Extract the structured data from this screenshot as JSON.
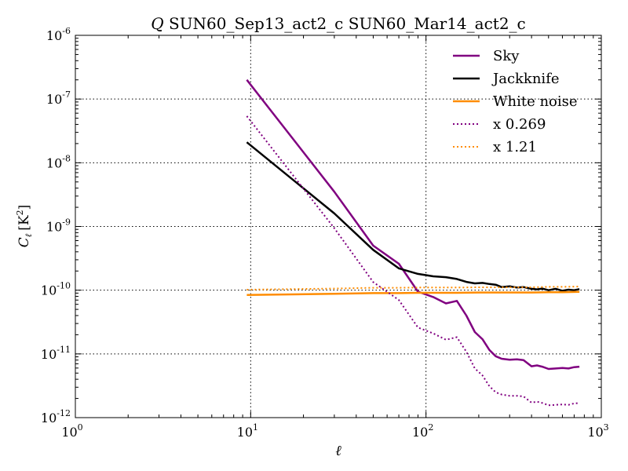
{
  "chart_data": {
    "type": "line",
    "title": "SUN60_Sep13_act2_c SUN60_Mar14_act2_c",
    "title_prefix": "Q",
    "xlabel": "ℓ",
    "ylabel": "C",
    "ylabel_sub": "ℓ",
    "ylabel_unit": "[K",
    "ylabel_unit_sup": "2",
    "ylabel_unit_end": "]",
    "xscale": "log",
    "yscale": "log",
    "xlim": [
      1,
      1000
    ],
    "ylim": [
      1e-12,
      1e-06
    ],
    "grid": true,
    "legend_position": "top-right",
    "x_ticks": [
      {
        "value": 1,
        "base": "10",
        "exp": "0"
      },
      {
        "value": 10,
        "base": "10",
        "exp": "1"
      },
      {
        "value": 100,
        "base": "10",
        "exp": "2"
      },
      {
        "value": 1000,
        "base": "10",
        "exp": "3"
      }
    ],
    "y_ticks": [
      {
        "value": 1e-12,
        "base": "10",
        "exp": "-12"
      },
      {
        "value": 1e-11,
        "base": "10",
        "exp": "-11"
      },
      {
        "value": 1e-10,
        "base": "10",
        "exp": "-10"
      },
      {
        "value": 1e-09,
        "base": "10",
        "exp": "-9"
      },
      {
        "value": 1e-08,
        "base": "10",
        "exp": "-8"
      },
      {
        "value": 1e-07,
        "base": "10",
        "exp": "-7"
      },
      {
        "value": 1e-06,
        "base": "10",
        "exp": "-6"
      }
    ],
    "series": [
      {
        "name": "Sky",
        "color": "#800080",
        "style": "solid",
        "x": [
          9.5,
          30,
          50,
          70,
          90,
          110,
          130,
          150,
          170,
          190,
          210,
          230,
          250,
          270,
          300,
          330,
          360,
          400,
          430,
          460,
          500,
          550,
          600,
          650,
          700,
          750
        ],
        "y": [
          2e-07,
          3.5e-09,
          5e-10,
          2.6e-10,
          9.5e-11,
          7.8e-11,
          6.2e-11,
          6.8e-11,
          4e-11,
          2.2e-11,
          1.7e-11,
          1.15e-11,
          9.2e-12,
          8.4e-12,
          8.1e-12,
          8.2e-12,
          8e-12,
          6.4e-12,
          6.6e-12,
          6.3e-12,
          5.8e-12,
          5.9e-12,
          6e-12,
          5.9e-12,
          6.2e-12,
          6.3e-12
        ]
      },
      {
        "name": "Jackknife",
        "color": "#000000",
        "style": "solid",
        "x": [
          9.5,
          30,
          50,
          70,
          90,
          110,
          130,
          150,
          170,
          190,
          210,
          230,
          250,
          270,
          300,
          330,
          360,
          400,
          430,
          460,
          500,
          550,
          600,
          650,
          700,
          750
        ],
        "y": [
          2.1e-08,
          1.6e-09,
          4.3e-10,
          2.2e-10,
          1.8e-10,
          1.65e-10,
          1.6e-10,
          1.5e-10,
          1.35e-10,
          1.28e-10,
          1.3e-10,
          1.25e-10,
          1.22e-10,
          1.12e-10,
          1.15e-10,
          1.1e-10,
          1.12e-10,
          1.05e-10,
          1.03e-10,
          1.06e-10,
          1e-10,
          1.05e-10,
          9.8e-11,
          1.02e-10,
          1e-10,
          1.04e-10
        ]
      },
      {
        "name": "White noise",
        "color": "#FF8C00",
        "style": "solid",
        "x": [
          9.5,
          30,
          50,
          70,
          90,
          150,
          200,
          300,
          400,
          500,
          600,
          750
        ],
        "y": [
          8.4e-11,
          8.8e-11,
          9e-11,
          9e-11,
          9.1e-11,
          9.1e-11,
          9.2e-11,
          9.2e-11,
          9.2e-11,
          9.3e-11,
          9.3e-11,
          9.4e-11
        ]
      },
      {
        "name": "x 0.269",
        "color": "#800080",
        "style": "dotted",
        "x": [
          9.5,
          30,
          50,
          70,
          90,
          110,
          130,
          150,
          170,
          190,
          210,
          230,
          250,
          270,
          300,
          330,
          360,
          400,
          430,
          460,
          500,
          550,
          600,
          650,
          700,
          750
        ],
        "y": [
          5.4e-08,
          9.4e-10,
          1.34e-10,
          7e-11,
          2.6e-11,
          2.1e-11,
          1.67e-11,
          1.83e-11,
          1.08e-11,
          5.9e-12,
          4.6e-12,
          3.1e-12,
          2.5e-12,
          2.3e-12,
          2.2e-12,
          2.2e-12,
          2.15e-12,
          1.72e-12,
          1.78e-12,
          1.7e-12,
          1.56e-12,
          1.59e-12,
          1.61e-12,
          1.59e-12,
          1.67e-12,
          1.69e-12
        ]
      },
      {
        "name": "x 1.21",
        "color": "#FF8C00",
        "style": "dotted",
        "x": [
          9.5,
          30,
          50,
          70,
          90,
          150,
          200,
          300,
          400,
          500,
          600,
          750
        ],
        "y": [
          1.02e-10,
          1.06e-10,
          1.09e-10,
          1.09e-10,
          1.1e-10,
          1.1e-10,
          1.11e-10,
          1.11e-10,
          1.11e-10,
          1.13e-10,
          1.13e-10,
          1.14e-10
        ]
      }
    ]
  }
}
